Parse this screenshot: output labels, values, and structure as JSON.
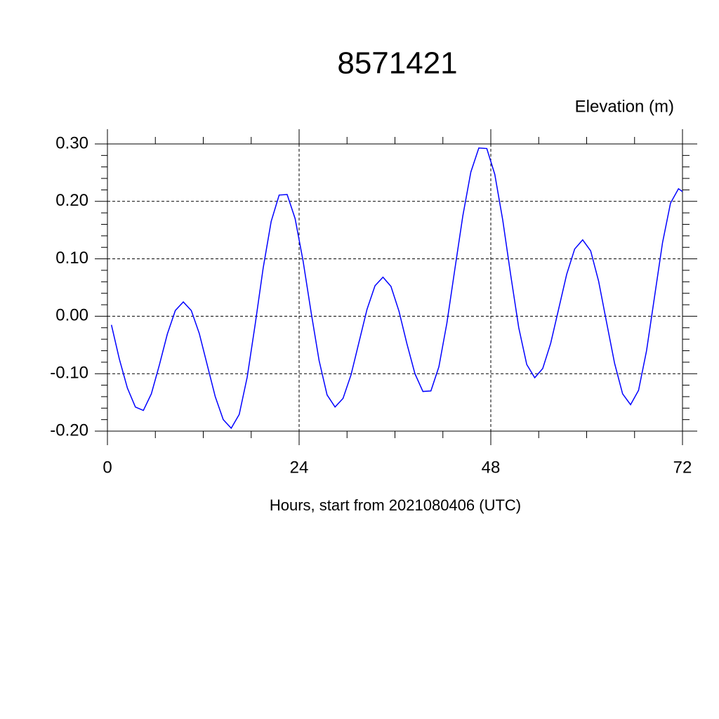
{
  "chart_data": {
    "type": "line",
    "title": "8571421",
    "subtitle": "Elevation (m)",
    "x_label": "Hours, start from 2021080406 (UTC)",
    "x": [
      0.5,
      1.5,
      2.5,
      3.5,
      4.5,
      5.5,
      6.5,
      7.5,
      8.5,
      9.5,
      10.5,
      11.5,
      12.5,
      13.5,
      14.5,
      15.5,
      16.5,
      17.5,
      18.5,
      19.5,
      20.5,
      21.5,
      22.5,
      23.5,
      24.5,
      25.5,
      26.5,
      27.5,
      28.5,
      29.5,
      30.5,
      31.5,
      32.5,
      33.5,
      34.5,
      35.5,
      36.5,
      37.5,
      38.5,
      39.5,
      40.5,
      41.5,
      42.5,
      43.5,
      44.5,
      45.5,
      46.5,
      47.5,
      48.5,
      49.5,
      50.5,
      51.5,
      52.5,
      53.5,
      54.5,
      55.5,
      56.5,
      57.5,
      58.5,
      59.5,
      60.5,
      61.5,
      62.5,
      63.5,
      64.5,
      65.5,
      66.5,
      67.5,
      68.5,
      69.5,
      70.5,
      71.5,
      72
    ],
    "series": [
      {
        "color": "#0000ff",
        "values": [
          -0.015,
          -0.075,
          -0.125,
          -0.158,
          -0.164,
          -0.135,
          -0.085,
          -0.031,
          0.01,
          0.025,
          0.01,
          -0.03,
          -0.085,
          -0.14,
          -0.18,
          -0.195,
          -0.171,
          -0.106,
          -0.014,
          0.084,
          0.165,
          0.211,
          0.212,
          0.17,
          0.096,
          0.007,
          -0.077,
          -0.137,
          -0.158,
          -0.143,
          -0.102,
          -0.045,
          0.012,
          0.053,
          0.068,
          0.052,
          0.009,
          -0.048,
          -0.1,
          -0.131,
          -0.13,
          -0.088,
          -0.012,
          0.082,
          0.175,
          0.251,
          0.293,
          0.292,
          0.247,
          0.167,
          0.071,
          -0.02,
          -0.084,
          -0.107,
          -0.091,
          -0.047,
          0.013,
          0.073,
          0.117,
          0.133,
          0.114,
          0.061,
          -0.011,
          -0.082,
          -0.135,
          -0.154,
          -0.129,
          -0.06,
          0.034,
          0.128,
          0.197,
          0.222,
          0.217
        ]
      }
    ],
    "xlim": [
      0,
      72
    ],
    "xticks": [
      0,
      24,
      48,
      72
    ],
    "xminor": [
      6,
      12,
      18,
      30,
      36,
      42,
      54,
      60,
      66
    ],
    "ylim": [
      -0.2,
      0.3
    ],
    "yticks": [
      {
        "value": -0.2,
        "label": "-0.20"
      },
      {
        "value": -0.1,
        "label": "-0.10"
      },
      {
        "value": 0,
        "label": "0.00"
      },
      {
        "value": 0.1,
        "label": "0.10"
      },
      {
        "value": 0.2,
        "label": "0.20"
      },
      {
        "value": 0.3,
        "label": "0.30"
      }
    ],
    "yminor": [
      -0.18,
      -0.16,
      -0.14,
      -0.12,
      -0.08,
      -0.06,
      -0.04,
      -0.02,
      0.02,
      0.04,
      0.06,
      0.08,
      0.12,
      0.14,
      0.16,
      0.18,
      0.22,
      0.24,
      0.26,
      0.28
    ],
    "grid": true
  }
}
